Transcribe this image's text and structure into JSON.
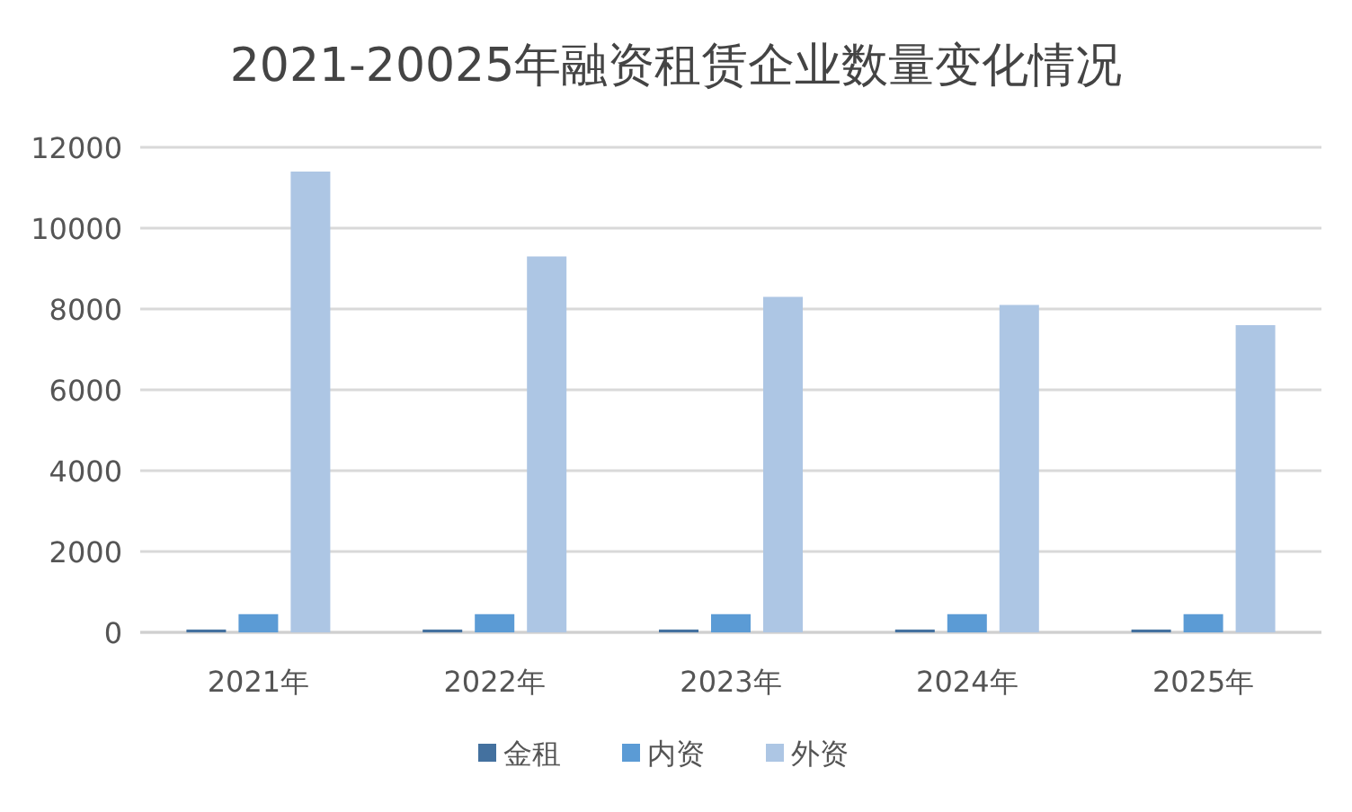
{
  "chart_data": {
    "type": "bar",
    "title": "2021-20025年融资租赁企业数量变化情况",
    "categories": [
      "2021年",
      "2022年",
      "2023年",
      "2024年",
      "2025年"
    ],
    "series": [
      {
        "name": "金租",
        "color": "#44719f",
        "values": [
          70,
          70,
          70,
          70,
          70
        ]
      },
      {
        "name": "内资",
        "color": "#5b9bd5",
        "values": [
          450,
          450,
          450,
          450,
          450
        ]
      },
      {
        "name": "外资",
        "color": "#adc6e4",
        "values": [
          11400,
          9300,
          8300,
          8100,
          7600
        ]
      }
    ],
    "ylim": [
      0,
      12000
    ],
    "yticks": [
      0,
      2000,
      4000,
      6000,
      8000,
      10000,
      12000
    ],
    "grid": "y",
    "legend": "bottom"
  }
}
